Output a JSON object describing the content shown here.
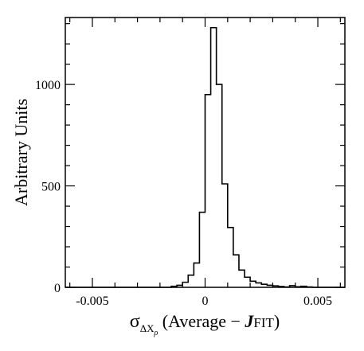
{
  "chart_data": {
    "type": "histogram",
    "ylabel": "Arbitrary Units",
    "xlabel": {
      "sigma": "σ",
      "sub_delta": "ΔX",
      "sub_rho": "ρ",
      "open": " (Average − ",
      "J": "J",
      "fit": "FIT",
      "close": ")"
    },
    "xlim": [
      -0.0062,
      0.0062
    ],
    "ylim": [
      0,
      1330
    ],
    "x_ticks": [
      -0.005,
      0,
      0.005
    ],
    "x_tick_labels": [
      "-0.005",
      "0",
      "0.005"
    ],
    "y_ticks": [
      0,
      500,
      1000
    ],
    "y_tick_labels": [
      "0",
      "500",
      "1000"
    ],
    "bin_width": 0.00025,
    "bins": [
      {
        "x": -0.00625,
        "y": 0
      },
      {
        "x": -0.0015,
        "y": 5
      },
      {
        "x": -0.00125,
        "y": 10
      },
      {
        "x": -0.001,
        "y": 25
      },
      {
        "x": -0.00075,
        "y": 60
      },
      {
        "x": -0.0005,
        "y": 120
      },
      {
        "x": -0.00025,
        "y": 370
      },
      {
        "x": 0,
        "y": 950
      },
      {
        "x": 0.00025,
        "y": 1280
      },
      {
        "x": 0.0005,
        "y": 1000
      },
      {
        "x": 0.00075,
        "y": 510
      },
      {
        "x": 0.001,
        "y": 295
      },
      {
        "x": 0.00125,
        "y": 160
      },
      {
        "x": 0.0015,
        "y": 85
      },
      {
        "x": 0.00175,
        "y": 50
      },
      {
        "x": 0.002,
        "y": 30
      },
      {
        "x": 0.00225,
        "y": 22
      },
      {
        "x": 0.0025,
        "y": 15
      },
      {
        "x": 0.00275,
        "y": 10
      },
      {
        "x": 0.003,
        "y": 7
      },
      {
        "x": 0.00325,
        "y": 4
      },
      {
        "x": 0.0035,
        "y": 2
      },
      {
        "x": 0.00375,
        "y": 8
      },
      {
        "x": 0.004,
        "y": 3
      },
      {
        "x": 0.00425,
        "y": 5
      },
      {
        "x": 0.0045,
        "y": 2
      },
      {
        "x": 0.00475,
        "y": 0
      }
    ]
  }
}
